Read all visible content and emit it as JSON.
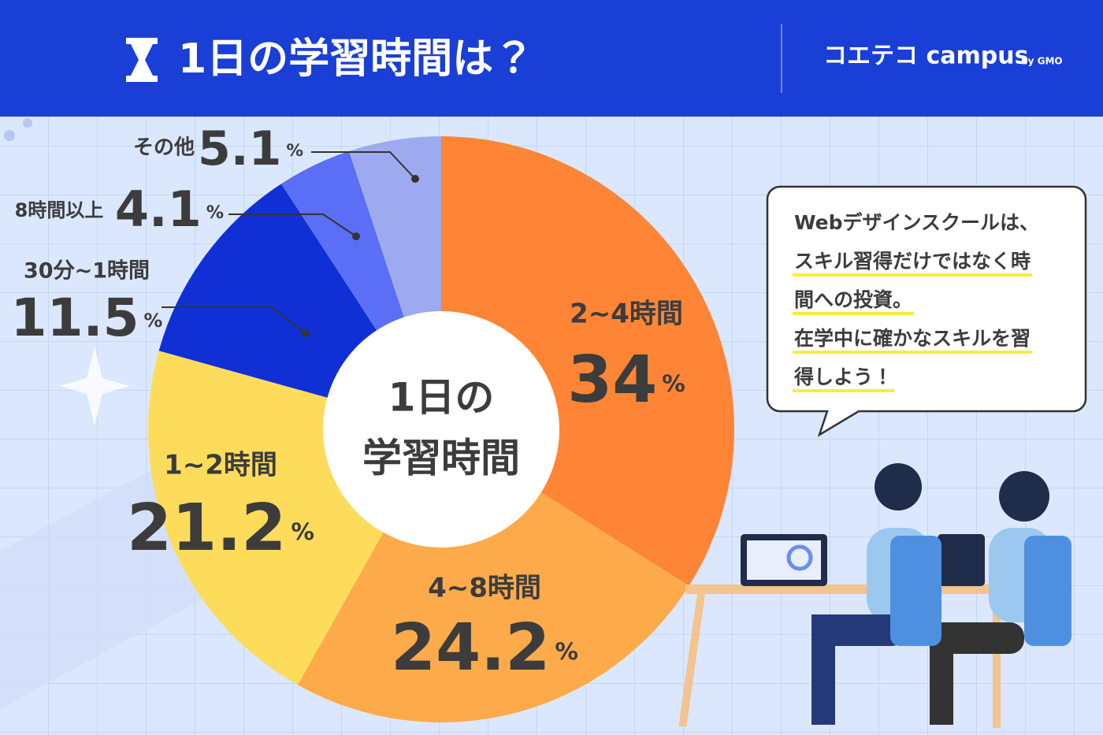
{
  "chart_data": {
    "type": "pie",
    "title": "1日の学習時間は？",
    "center_label": [
      "1日の",
      "学習時間"
    ],
    "categories": [
      "2~4時間",
      "4~8時間",
      "1~2時間",
      "30分~1時間",
      "8時間以上",
      "その他"
    ],
    "values": [
      34,
      24.2,
      21.2,
      11.5,
      4.1,
      5.1
    ],
    "unit": "%",
    "colors": [
      "#fd8535",
      "#fdaa4a",
      "#fddc5c",
      "#1030d6",
      "#5a6ff5",
      "#9eaaf0"
    ]
  },
  "brand": {
    "name": "コエテコ campus",
    "sub": "by GMO"
  },
  "bubble": {
    "lines": [
      "Webデザインスクールは、",
      "スキル習得だけではなく時",
      "間への投資。",
      "在学中に確かなスキルを習",
      "得しよう！"
    ]
  }
}
